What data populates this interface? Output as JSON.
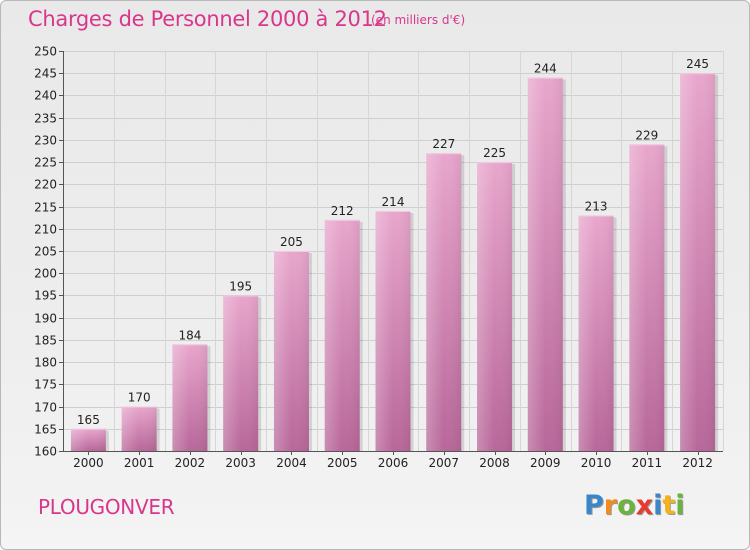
{
  "title": "Charges de Personnel 2000 à 2012",
  "unit_note": "(en milliers d'€)",
  "commune": "PLOUGONVER",
  "logo": {
    "letters": [
      "P",
      "r",
      "o",
      "x",
      "i",
      "t",
      "i"
    ],
    "colors": [
      "#3a86c9",
      "#f28a1c",
      "#6ab33c",
      "#e63b2e",
      "#3a86c9",
      "#f2b21c",
      "#6ab33c"
    ]
  },
  "colors": {
    "title": "#d9368c",
    "bar_top": "#e8a6cc",
    "bar_bottom": "#b8679a"
  },
  "chart_data": {
    "type": "bar",
    "title": "Charges de Personnel 2000 à 2012",
    "subtitle": "(en milliers d'€)",
    "xlabel": "",
    "ylabel": "",
    "categories": [
      "2000",
      "2001",
      "2002",
      "2003",
      "2004",
      "2005",
      "2006",
      "2007",
      "2008",
      "2009",
      "2010",
      "2011",
      "2012"
    ],
    "values": [
      165,
      170,
      184,
      195,
      205,
      212,
      214,
      227,
      225,
      244,
      213,
      229,
      245
    ],
    "ylim": [
      160,
      250
    ],
    "yticks": [
      160,
      165,
      170,
      175,
      180,
      185,
      190,
      195,
      200,
      205,
      210,
      215,
      220,
      225,
      230,
      235,
      240,
      245,
      250
    ],
    "grid": true
  }
}
